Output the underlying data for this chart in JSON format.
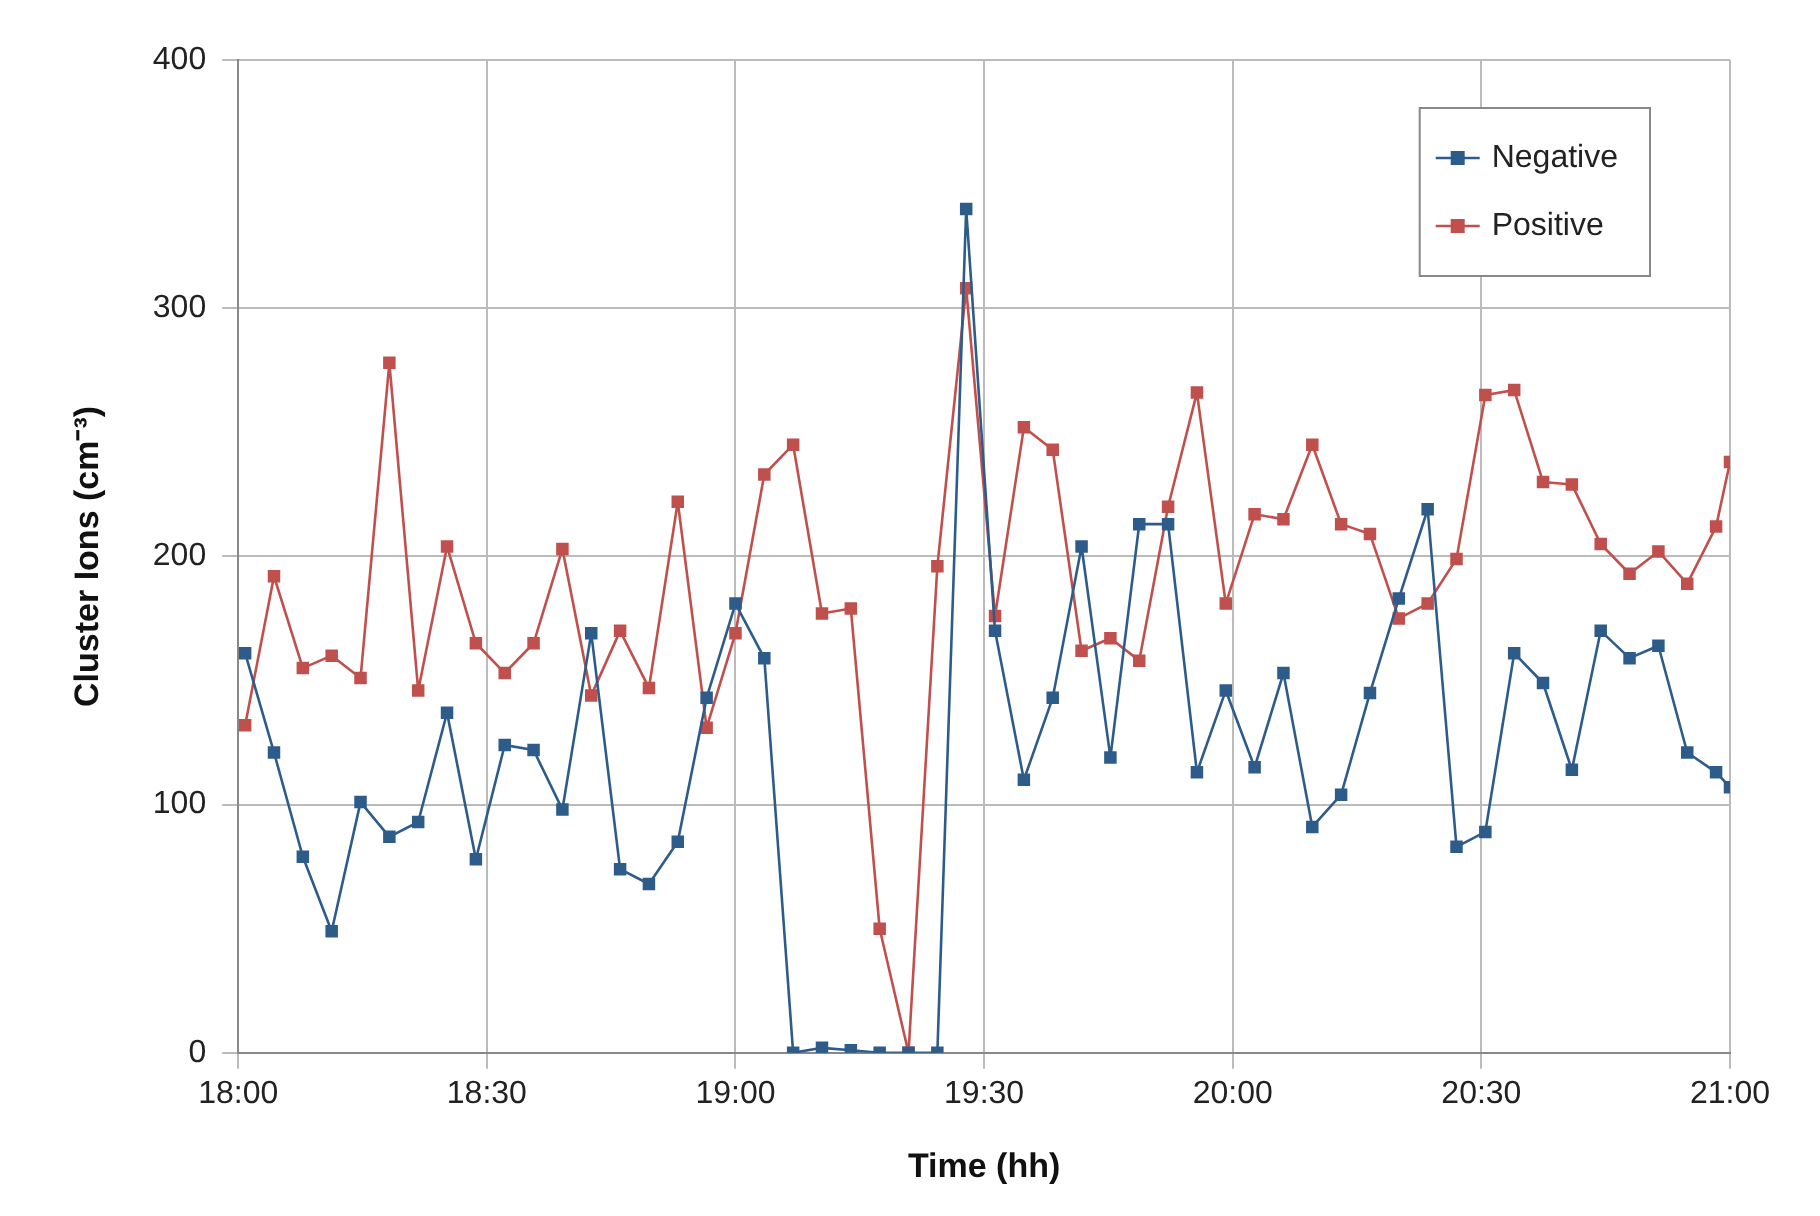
{
  "chart_data": {
    "type": "line",
    "xlabel": "Time (hh)",
    "ylabel": "Cluster Ions (cm⁻³)",
    "x": [
      18.014,
      18.072,
      18.13,
      18.188,
      18.246,
      18.304,
      18.362,
      18.42,
      18.478,
      18.536,
      18.594,
      18.652,
      18.71,
      18.768,
      18.826,
      18.884,
      18.942,
      19.0,
      19.058,
      19.116,
      19.174,
      19.232,
      19.29,
      19.348,
      19.406,
      19.464,
      19.522,
      19.58,
      19.638,
      19.696,
      19.754,
      19.812,
      19.87,
      19.928,
      19.986,
      20.044,
      20.102,
      20.16,
      20.218,
      20.276,
      20.334,
      20.392,
      20.45,
      20.508,
      20.566,
      20.624,
      20.682,
      20.74,
      20.798,
      20.856,
      20.914,
      20.972,
      21.0
    ],
    "series": [
      {
        "name": "Negative",
        "color": "#2e5c8a",
        "values": [
          161,
          121,
          79,
          49,
          101,
          87,
          93,
          137,
          78,
          124,
          122,
          98,
          169,
          74,
          68,
          85,
          143,
          181,
          159,
          0,
          2,
          1,
          0,
          0,
          0,
          340,
          170,
          110,
          143,
          204,
          119,
          213,
          213,
          113,
          146,
          115,
          153,
          91,
          104,
          145,
          183,
          219,
          83,
          89,
          161,
          149,
          114,
          170,
          159,
          164,
          121,
          113,
          107
        ]
      },
      {
        "name": "Positive",
        "color": "#c0504d",
        "values": [
          132,
          192,
          155,
          160,
          151,
          278,
          146,
          204,
          165,
          153,
          165,
          203,
          144,
          170,
          147,
          222,
          131,
          169,
          233,
          245,
          177,
          179,
          50,
          0,
          196,
          308,
          176,
          252,
          243,
          162,
          167,
          158,
          220,
          266,
          181,
          217,
          215,
          245,
          213,
          209,
          175,
          181,
          199,
          265,
          267,
          230,
          229,
          205,
          193,
          202,
          189,
          212,
          238
        ]
      }
    ],
    "xlim": [
      18,
      21
    ],
    "xticks": [
      {
        "value": 18,
        "label": "18:00"
      },
      {
        "value": 18.5,
        "label": "18:30"
      },
      {
        "value": 19,
        "label": "19:00"
      },
      {
        "value": 19.5,
        "label": "19:30"
      },
      {
        "value": 20,
        "label": "20:00"
      },
      {
        "value": 20.5,
        "label": "20:30"
      },
      {
        "value": 21,
        "label": "21:00"
      }
    ],
    "ylim": [
      0,
      400
    ],
    "yticks": [
      0,
      100,
      200,
      300,
      400
    ],
    "grid": true,
    "legend": "top right",
    "marker": "square",
    "line_style": "solid"
  }
}
